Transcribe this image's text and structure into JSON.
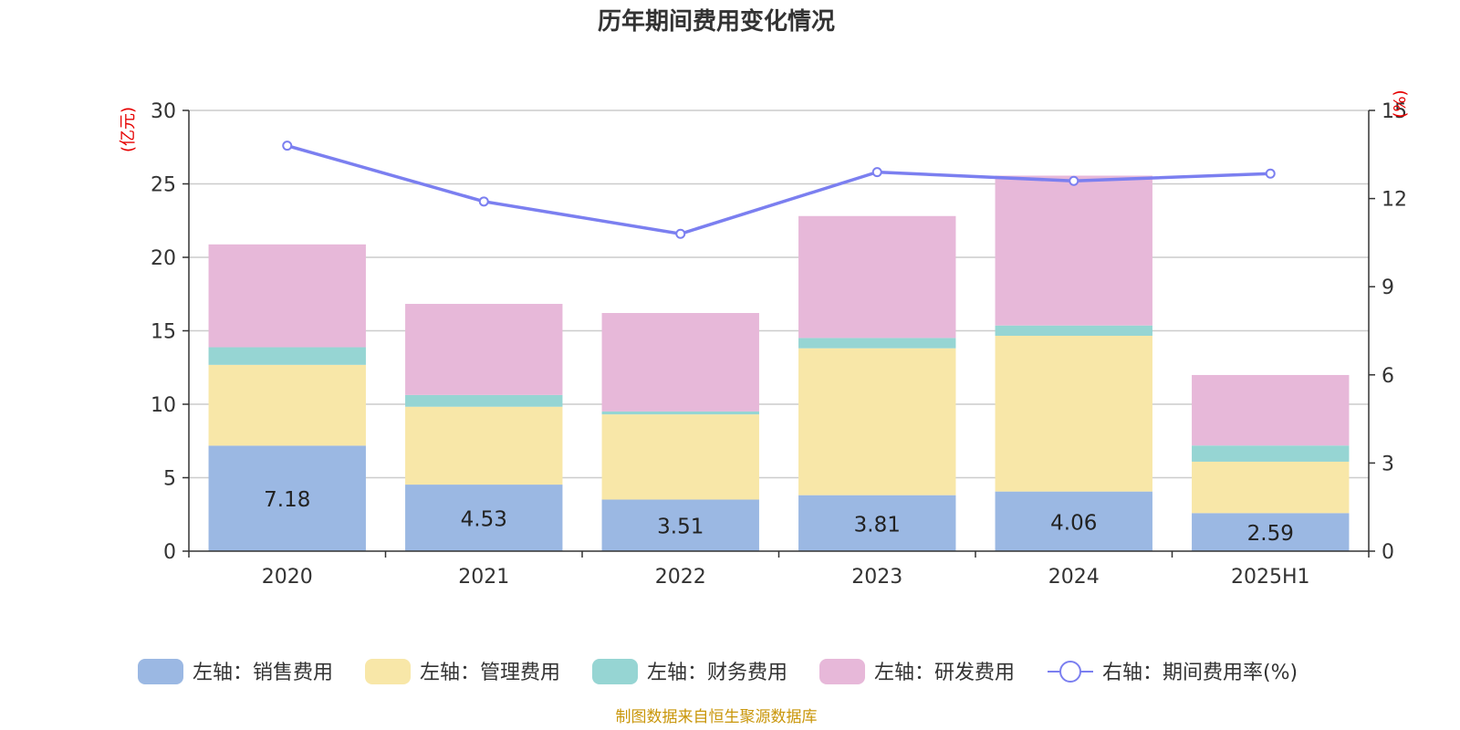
{
  "chart_data": {
    "type": "bar",
    "title": "历年期间费用变化情况",
    "categories": [
      "2020",
      "2021",
      "2022",
      "2023",
      "2024",
      "2025H1"
    ],
    "series": [
      {
        "name": "左轴：销售费用",
        "axis": "left",
        "color": "#9bb8e3",
        "values": [
          7.18,
          4.53,
          3.51,
          3.81,
          4.06,
          2.59
        ],
        "show_labels": true
      },
      {
        "name": "左轴：管理费用",
        "axis": "left",
        "color": "#f8e7a8",
        "values": [
          5.5,
          5.3,
          5.8,
          10.0,
          10.6,
          3.5
        ]
      },
      {
        "name": "左轴：财务费用",
        "axis": "left",
        "color": "#96d5d3",
        "values": [
          1.2,
          0.8,
          0.2,
          0.7,
          0.7,
          1.1
        ]
      },
      {
        "name": "左轴：研发费用",
        "axis": "left",
        "color": "#e7b8d9",
        "values": [
          7.0,
          6.2,
          6.7,
          8.3,
          10.2,
          4.8
        ]
      },
      {
        "name": "右轴：期间费用率(%)",
        "axis": "right",
        "type": "line",
        "color": "#7b7ff0",
        "values": [
          13.8,
          11.9,
          10.8,
          12.9,
          12.6,
          12.85
        ]
      }
    ],
    "left_axis": {
      "unit": "(亿元)",
      "min": 0,
      "max": 30,
      "ticks": [
        0,
        5,
        10,
        15,
        20,
        25,
        30
      ]
    },
    "right_axis": {
      "unit": "(%)",
      "min": 0,
      "max": 15,
      "ticks": [
        0,
        3,
        6,
        9,
        12,
        15
      ]
    },
    "grid": true,
    "legend_position": "bottom"
  },
  "source_text": "制图数据来自恒生聚源数据库"
}
